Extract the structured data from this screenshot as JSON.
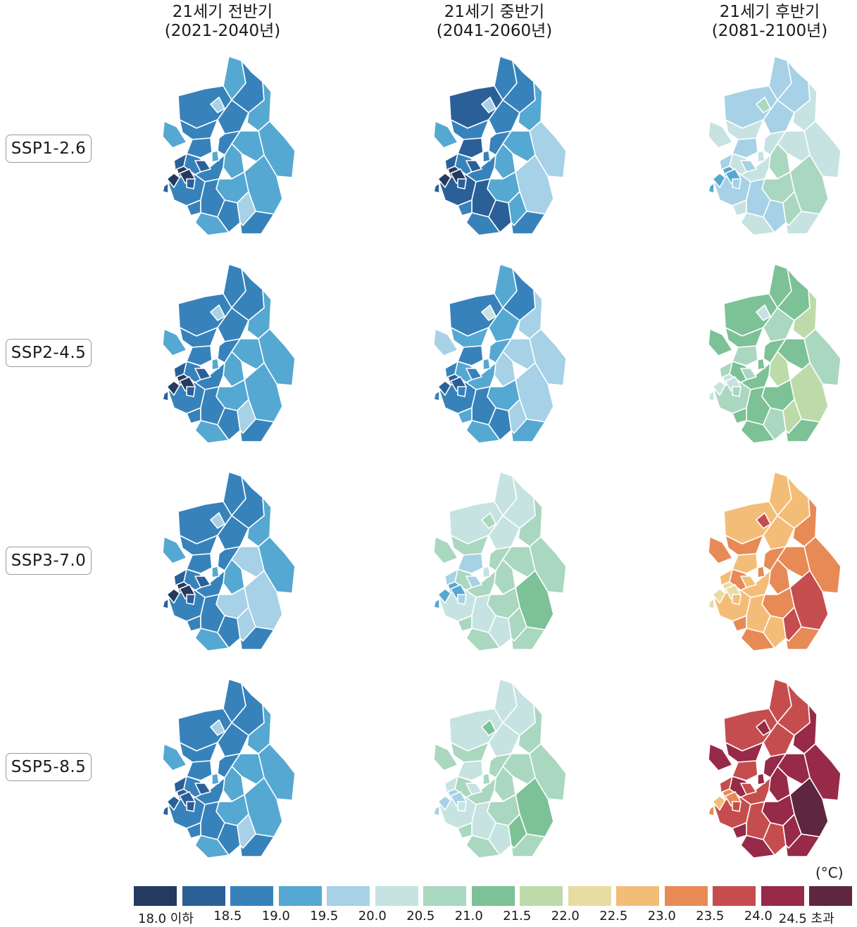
{
  "columns": [
    {
      "line1": "21세기 전반기",
      "line2": "(2021-2040년)"
    },
    {
      "line1": "21세기 중반기",
      "line2": "(2041-2060년)"
    },
    {
      "line1": "21세기 후반기",
      "line2": "(2081-2100년)"
    }
  ],
  "rows": [
    {
      "label": "SSP1-2.6"
    },
    {
      "label": "SSP2-4.5"
    },
    {
      "label": "SSP3-7.0"
    },
    {
      "label": "SSP5-8.5"
    }
  ],
  "legend": {
    "unit": "(°C)",
    "ticks": [
      "18.0 이하",
      "18.5",
      "19.0",
      "19.5",
      "20.0",
      "20.5",
      "21.0",
      "21.5",
      "22.0",
      "22.5",
      "23.0",
      "23.5",
      "24.0",
      "24.5 초과"
    ],
    "colors": [
      "#263a60",
      "#2b5f98",
      "#3782bb",
      "#55a8d2",
      "#a6d1e6",
      "#c6e3e2",
      "#aad7bf",
      "#7dc197",
      "#bcdba9",
      "#e7dca1",
      "#f4bd77",
      "#e88a56",
      "#c64d4d",
      "#962a48",
      "#5f2640"
    ]
  },
  "maps": [
    {
      "id": "ssp126-early",
      "colors": [
        3,
        2,
        2,
        4,
        2,
        3,
        3,
        3,
        2,
        3,
        3,
        4,
        3,
        3,
        2,
        2,
        2,
        2,
        3,
        2,
        4,
        2,
        2,
        1,
        0,
        1,
        0,
        0,
        1,
        2,
        3,
        2,
        1
      ]
    },
    {
      "id": "ssp126-mid",
      "colors": [
        2,
        1,
        2,
        4,
        2,
        3,
        4,
        3,
        2,
        3,
        4,
        4,
        3,
        3,
        2,
        2,
        1,
        1,
        2,
        1,
        3,
        2,
        2,
        1,
        0,
        1,
        0,
        0,
        1,
        1,
        2,
        2,
        1
      ]
    },
    {
      "id": "ssp126-late",
      "colors": [
        4,
        4,
        4,
        6,
        4,
        5,
        5,
        5,
        5,
        6,
        6,
        6,
        6,
        5,
        5,
        5,
        4,
        4,
        5,
        4,
        6,
        5,
        5,
        4,
        3,
        4,
        3,
        3,
        4,
        4,
        5,
        5,
        3
      ]
    },
    {
      "id": "ssp245-early",
      "colors": [
        2,
        2,
        2,
        4,
        2,
        3,
        3,
        3,
        2,
        3,
        3,
        4,
        3,
        3,
        2,
        2,
        2,
        2,
        3,
        2,
        4,
        2,
        2,
        1,
        0,
        1,
        0,
        0,
        1,
        2,
        3,
        2,
        1
      ]
    },
    {
      "id": "ssp245-mid",
      "colors": [
        3,
        2,
        2,
        5,
        3,
        4,
        4,
        4,
        3,
        4,
        4,
        5,
        3,
        4,
        3,
        3,
        2,
        2,
        3,
        2,
        4,
        3,
        3,
        2,
        1,
        2,
        1,
        1,
        2,
        2,
        3,
        3,
        2
      ]
    },
    {
      "id": "ssp245-late",
      "colors": [
        7,
        7,
        7,
        5,
        6,
        8,
        6,
        7,
        7,
        8,
        8,
        8,
        7,
        7,
        7,
        7,
        6,
        7,
        7,
        6,
        8,
        7,
        7,
        6,
        5,
        6,
        5,
        5,
        6,
        6,
        7,
        7,
        5
      ]
    },
    {
      "id": "ssp370-early",
      "colors": [
        2,
        2,
        2,
        4,
        2,
        3,
        3,
        4,
        2,
        3,
        4,
        5,
        4,
        3,
        2,
        2,
        2,
        2,
        3,
        2,
        4,
        2,
        2,
        1,
        0,
        1,
        0,
        0,
        1,
        2,
        3,
        2,
        1
      ]
    },
    {
      "id": "ssp370-mid",
      "colors": [
        5,
        5,
        5,
        6,
        5,
        6,
        6,
        6,
        6,
        6,
        7,
        6,
        6,
        6,
        6,
        6,
        5,
        5,
        6,
        5,
        6,
        6,
        6,
        4,
        3,
        4,
        3,
        3,
        4,
        4,
        5,
        6,
        3
      ]
    },
    {
      "id": "ssp370-late",
      "colors": [
        10,
        10,
        10,
        12,
        10,
        11,
        11,
        11,
        11,
        11,
        12,
        12,
        11,
        11,
        11,
        10,
        10,
        10,
        11,
        10,
        12,
        11,
        11,
        10,
        9,
        10,
        9,
        9,
        10,
        10,
        11,
        11,
        9
      ]
    },
    {
      "id": "ssp585-early",
      "colors": [
        2,
        2,
        2,
        4,
        2,
        3,
        3,
        3,
        2,
        3,
        3,
        4,
        3,
        3,
        2,
        2,
        2,
        2,
        3,
        2,
        4,
        2,
        2,
        1,
        1,
        1,
        1,
        1,
        1,
        2,
        3,
        2,
        1
      ]
    },
    {
      "id": "ssp585-mid",
      "colors": [
        5,
        5,
        5,
        7,
        5,
        6,
        6,
        6,
        6,
        6,
        7,
        6,
        6,
        6,
        6,
        6,
        5,
        5,
        6,
        5,
        7,
        6,
        6,
        5,
        4,
        5,
        4,
        4,
        5,
        5,
        6,
        6,
        4
      ]
    },
    {
      "id": "ssp585-late",
      "colors": [
        12,
        12,
        12,
        13,
        12,
        13,
        13,
        13,
        13,
        13,
        14,
        13,
        13,
        13,
        13,
        12,
        12,
        12,
        13,
        12,
        13,
        13,
        13,
        12,
        11,
        12,
        11,
        10,
        12,
        12,
        13,
        13,
        11
      ]
    }
  ]
}
